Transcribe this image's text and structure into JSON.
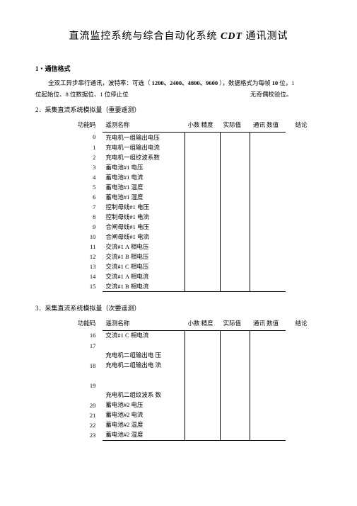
{
  "title_pre": "直流监控系统与综合自动化系统",
  "title_cdt": "CDT",
  "title_post": "通讯测试",
  "sec1": "1・通信格式",
  "para1a": "全双工异步串行通讯，波特率：可选（",
  "para1b": "1200、2400、4800、9600",
  "para1c": "），数据格式为每帧",
  "para1d": "10",
  "para1e": "位，1",
  "para2a": "位起始位、8 位数据位、1 位停止位",
  "para2b": "无奇偶校验位。",
  "sec2": "2．采集直流系统模拟量（重要遥测）",
  "sec3": "3．采集直流系统模拟量（次要遥测）",
  "hdr": {
    "code": "功能码",
    "name": "遥测名称",
    "prec": "小数 精度",
    "real": "实际值",
    "comm": "通讯  数值",
    "conc": "结论"
  },
  "t1": [
    {
      "c": "0",
      "n": "充电机一组输出电压"
    },
    {
      "c": "1",
      "n": "充电机一组输出电流"
    },
    {
      "c": "2",
      "n": "充电机一组纹波系数"
    },
    {
      "c": "3",
      "n": "蓄电池#1 电压"
    },
    {
      "c": "4",
      "n": "蓄电池#1 电流"
    },
    {
      "c": "5",
      "n": "蓄电池#1 温度"
    },
    {
      "c": "6",
      "n": "蓄电池#1 湿度"
    },
    {
      "c": "7",
      "n": "控制母线#1 电压"
    },
    {
      "c": "8",
      "n": "控制母线#1 电流"
    },
    {
      "c": "9",
      "n": "合闸母线#1  电压"
    },
    {
      "c": "10",
      "n": "合闸母线#1 电流"
    },
    {
      "c": "11",
      "n": "交流#1 A 相电压"
    },
    {
      "c": "12",
      "n": "交流#1 B 相电压"
    },
    {
      "c": "13",
      "n": "交流#1 C 相电压"
    },
    {
      "c": "14",
      "n": "交流#1 A 相电流"
    },
    {
      "c": "15",
      "n": "交流#1 B 相电流"
    }
  ],
  "t2": [
    {
      "c": "16",
      "n": "交流#1 C 相电流"
    },
    {
      "c": "17",
      "n": ""
    },
    {
      "c": "",
      "n": "充电机二组输出电  压"
    },
    {
      "c": "18",
      "n": "充电机二组输出电  流"
    },
    {
      "c": "",
      "n": ""
    },
    {
      "c": "19",
      "n": ""
    },
    {
      "c": "",
      "n": "充电机二组纹波系  数"
    },
    {
      "c": "20",
      "n": "蓄电池#2 电压"
    },
    {
      "c": "21",
      "n": "蓄电池#2 电流"
    },
    {
      "c": "22",
      "n": "蓄电池#2 温度"
    },
    {
      "c": "23",
      "n": "蓄电池#2 湿度"
    }
  ]
}
